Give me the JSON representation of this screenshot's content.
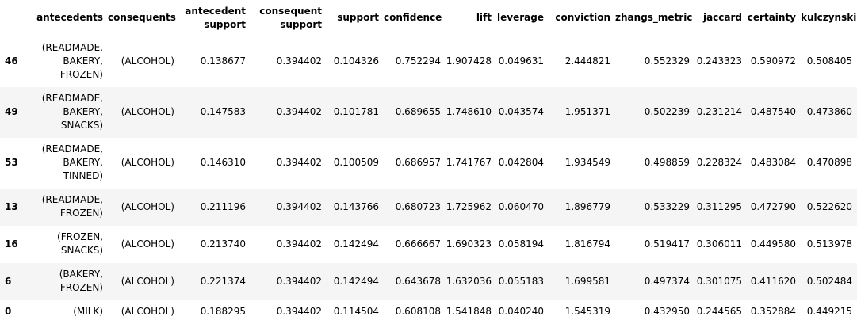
{
  "table": {
    "columns": [
      "",
      "antecedents",
      "consequents",
      "antecedent\nsupport",
      "consequent\nsupport",
      "support",
      "confidence",
      "lift",
      "leverage",
      "conviction",
      "zhangs_metric",
      "jaccard",
      "certainty",
      "kulczynski"
    ],
    "rows": [
      {
        "index": "46",
        "antecedents": "(READMADE,\nBAKERY,\nFROZEN)",
        "consequents": "(ALCOHOL)",
        "antecedent_support": "0.138677",
        "consequent_support": "0.394402",
        "support": "0.104326",
        "confidence": "0.752294",
        "lift": "1.907428",
        "leverage": "0.049631",
        "conviction": "2.444821",
        "zhangs_metric": "0.552329",
        "jaccard": "0.243323",
        "certainty": "0.590972",
        "kulczynski": "0.508405"
      },
      {
        "index": "49",
        "antecedents": "(READMADE,\nBAKERY,\nSNACKS)",
        "consequents": "(ALCOHOL)",
        "antecedent_support": "0.147583",
        "consequent_support": "0.394402",
        "support": "0.101781",
        "confidence": "0.689655",
        "lift": "1.748610",
        "leverage": "0.043574",
        "conviction": "1.951371",
        "zhangs_metric": "0.502239",
        "jaccard": "0.231214",
        "certainty": "0.487540",
        "kulczynski": "0.473860"
      },
      {
        "index": "53",
        "antecedents": "(READMADE,\nBAKERY,\nTINNED)",
        "consequents": "(ALCOHOL)",
        "antecedent_support": "0.146310",
        "consequent_support": "0.394402",
        "support": "0.100509",
        "confidence": "0.686957",
        "lift": "1.741767",
        "leverage": "0.042804",
        "conviction": "1.934549",
        "zhangs_metric": "0.498859",
        "jaccard": "0.228324",
        "certainty": "0.483084",
        "kulczynski": "0.470898"
      },
      {
        "index": "13",
        "antecedents": "(READMADE,\nFROZEN)",
        "consequents": "(ALCOHOL)",
        "antecedent_support": "0.211196",
        "consequent_support": "0.394402",
        "support": "0.143766",
        "confidence": "0.680723",
        "lift": "1.725962",
        "leverage": "0.060470",
        "conviction": "1.896779",
        "zhangs_metric": "0.533229",
        "jaccard": "0.311295",
        "certainty": "0.472790",
        "kulczynski": "0.522620"
      },
      {
        "index": "16",
        "antecedents": "(FROZEN,\nSNACKS)",
        "consequents": "(ALCOHOL)",
        "antecedent_support": "0.213740",
        "consequent_support": "0.394402",
        "support": "0.142494",
        "confidence": "0.666667",
        "lift": "1.690323",
        "leverage": "0.058194",
        "conviction": "1.816794",
        "zhangs_metric": "0.519417",
        "jaccard": "0.306011",
        "certainty": "0.449580",
        "kulczynski": "0.513978"
      },
      {
        "index": "6",
        "antecedents": "(BAKERY,\nFROZEN)",
        "consequents": "(ALCOHOL)",
        "antecedent_support": "0.221374",
        "consequent_support": "0.394402",
        "support": "0.142494",
        "confidence": "0.643678",
        "lift": "1.632036",
        "leverage": "0.055183",
        "conviction": "1.699581",
        "zhangs_metric": "0.497374",
        "jaccard": "0.301075",
        "certainty": "0.411620",
        "kulczynski": "0.502484"
      },
      {
        "index": "0",
        "antecedents": "(MILK)",
        "consequents": "(ALCOHOL)",
        "antecedent_support": "0.188295",
        "consequent_support": "0.394402",
        "support": "0.114504",
        "confidence": "0.608108",
        "lift": "1.541848",
        "leverage": "0.040240",
        "conviction": "1.545319",
        "zhangs_metric": "0.432950",
        "jaccard": "0.244565",
        "certainty": "0.352884",
        "kulczynski": "0.449215"
      }
    ]
  }
}
